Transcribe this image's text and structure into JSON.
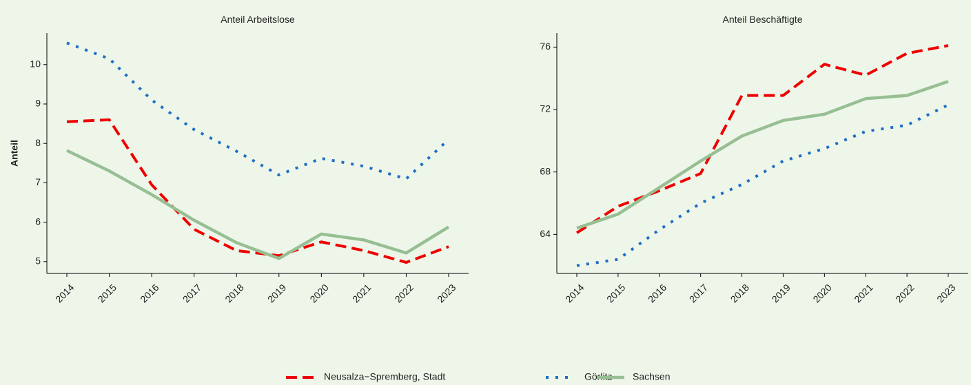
{
  "chart_data": [
    {
      "type": "line",
      "title": "Anteil Arbeitslose",
      "y_label": "Anteil",
      "categories": [
        "2014",
        "2015",
        "2016",
        "2017",
        "2018",
        "2019",
        "2020",
        "2021",
        "2022",
        "2023"
      ],
      "ylim": [
        4.7,
        10.8
      ],
      "yticks": [
        5,
        6,
        7,
        8,
        9,
        10
      ],
      "series": [
        {
          "name": "Neusalza−Spremberg, Stadt",
          "color": "#ee0000",
          "dash": "dashed",
          "values": [
            8.55,
            8.6,
            6.95,
            5.82,
            5.28,
            5.15,
            5.5,
            5.28,
            4.98,
            5.38
          ]
        },
        {
          "name": "Görlitz",
          "color": "#1f6fc5",
          "dash": "dotted",
          "values": [
            10.55,
            10.15,
            9.1,
            8.35,
            7.8,
            7.2,
            7.62,
            7.42,
            7.1,
            8.1
          ]
        },
        {
          "name": "Sachsen",
          "color": "#97bf93",
          "dash": "solid",
          "values": [
            7.82,
            7.3,
            6.7,
            6.05,
            5.48,
            5.08,
            5.7,
            5.55,
            5.22,
            5.88
          ]
        }
      ]
    },
    {
      "type": "line",
      "title": "Anteil Beschäftigte",
      "categories": [
        "2014",
        "2015",
        "2016",
        "2017",
        "2018",
        "2019",
        "2020",
        "2021",
        "2022",
        "2023"
      ],
      "ylim": [
        61.5,
        76.9
      ],
      "yticks": [
        64,
        68,
        72,
        76
      ],
      "series": [
        {
          "name": "Neusalza−Spremberg, Stadt",
          "color": "#ee0000",
          "dash": "dashed",
          "values": [
            64.1,
            65.8,
            66.8,
            67.9,
            72.9,
            72.9,
            74.9,
            74.2,
            75.6,
            76.1
          ]
        },
        {
          "name": "Görlitz",
          "color": "#1f6fc5",
          "dash": "dotted",
          "values": [
            62.0,
            62.4,
            64.3,
            66.0,
            67.2,
            68.7,
            69.5,
            70.6,
            71.0,
            72.3
          ]
        },
        {
          "name": "Sachsen",
          "color": "#97bf93",
          "dash": "solid",
          "values": [
            64.4,
            65.3,
            67.0,
            68.7,
            70.3,
            71.3,
            71.7,
            72.7,
            72.9,
            73.8
          ]
        }
      ]
    }
  ]
}
